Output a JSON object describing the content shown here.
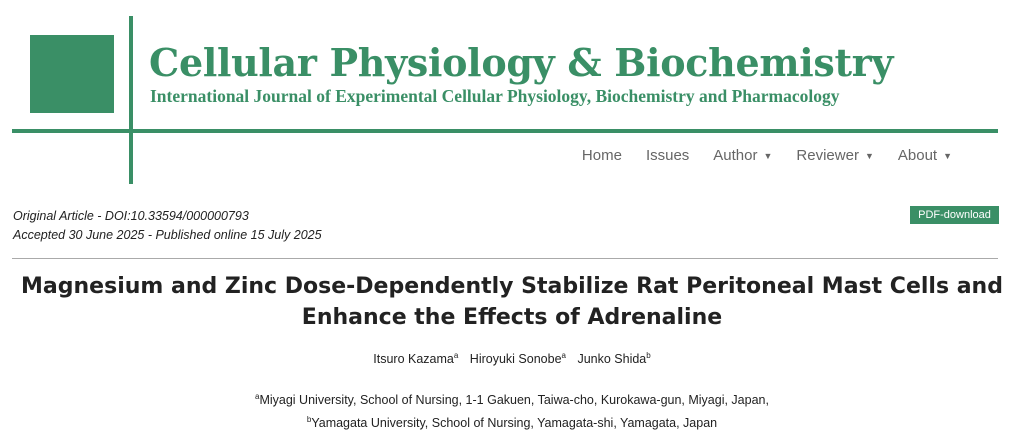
{
  "journal": {
    "title": "Cellular Physiology & Biochemistry",
    "subtitle": "International Journal of Experimental Cellular Physiology, Biochemistry and Pharmacology"
  },
  "nav": {
    "home": "Home",
    "issues": "Issues",
    "author": "Author",
    "reviewer": "Reviewer",
    "about": "About"
  },
  "article": {
    "type_doi": "Original Article - DOI:10.33594/000000793",
    "dates": "Accepted 30 June 2025 - Published online 15 July 2025",
    "pdf_label": "PDF-download",
    "title": "Magnesium and Zinc Dose-Dependently Stabilize Rat Peritoneal Mast Cells and Enhance the Effects of Adrenaline",
    "authors": [
      {
        "name": "Itsuro Kazama",
        "sup": "a"
      },
      {
        "name": "Hiroyuki Sonobe",
        "sup": "a"
      },
      {
        "name": "Junko Shida",
        "sup": "b"
      }
    ],
    "affiliations": [
      {
        "sup": "a",
        "text": "Miyagi University, School of Nursing, 1-1 Gakuen, Taiwa-cho, Kurokawa-gun, Miyagi, Japan,"
      },
      {
        "sup": "b",
        "text": "Yamagata University, School of Nursing, Yamagata-shi, Yamagata, Japan"
      }
    ]
  },
  "colors": {
    "brand": "#3a8f66"
  }
}
